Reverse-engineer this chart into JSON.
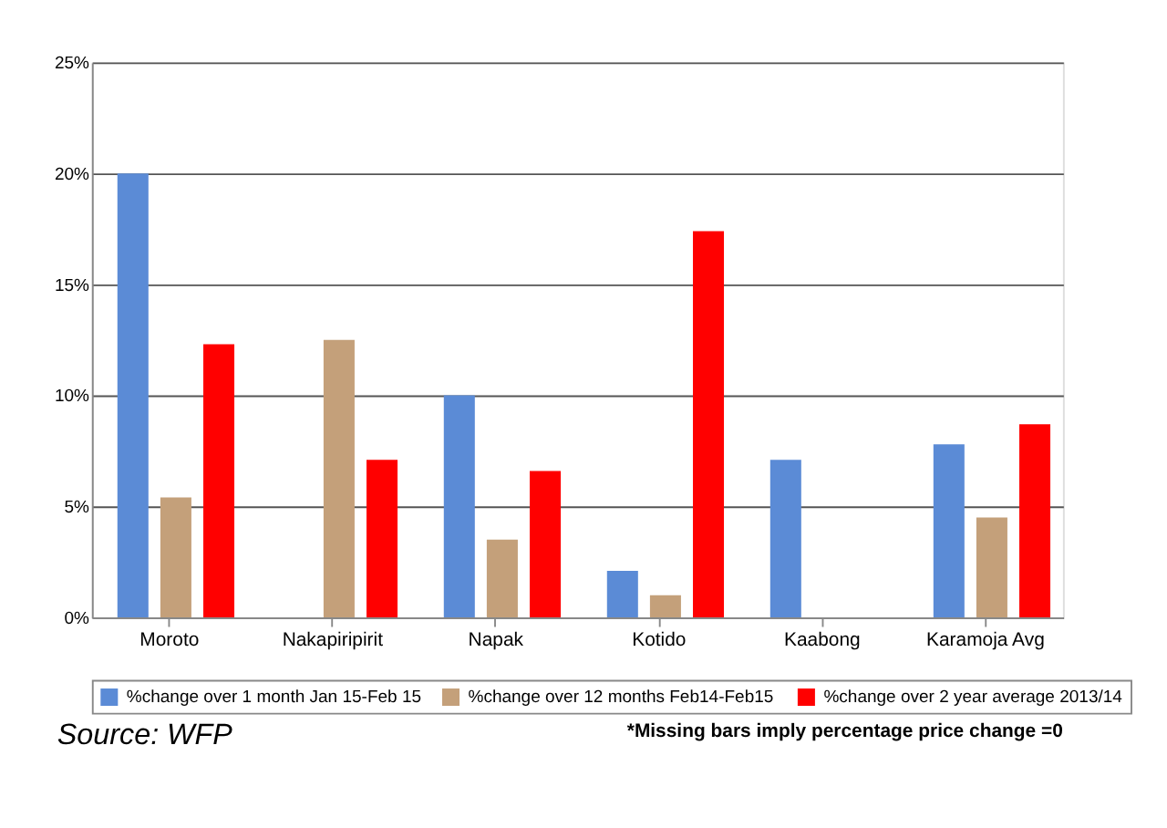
{
  "chart_data": {
    "type": "bar",
    "categories": [
      "Moroto",
      "Nakapiripirit",
      "Napak",
      "Kotido",
      "Kaabong",
      "Karamoja Avg"
    ],
    "series": [
      {
        "name": "%change over 1 month Jan 15-Feb 15",
        "color": "#5b8bd6",
        "values": [
          20.0,
          0,
          10.0,
          2.1,
          7.1,
          7.8
        ]
      },
      {
        "name": "%change over 12 months  Feb14-Feb15",
        "color": "#c4a07a",
        "values": [
          5.4,
          12.5,
          3.5,
          1.0,
          0,
          4.5
        ]
      },
      {
        "name": "%change over 2 year average 2013/14",
        "color": "#ff0000",
        "values": [
          12.3,
          7.1,
          6.6,
          17.4,
          0,
          8.7
        ]
      }
    ],
    "ylim": [
      0,
      25
    ],
    "yticks": [
      {
        "value": 0,
        "label": "0%"
      },
      {
        "value": 5,
        "label": "5%"
      },
      {
        "value": 10,
        "label": "10%"
      },
      {
        "value": 15,
        "label": "15%"
      },
      {
        "value": 20,
        "label": "20%"
      },
      {
        "value": 25,
        "label": "25%"
      }
    ],
    "grid": "y",
    "legend": "bottom",
    "annotations": [
      "Source: WFP",
      "*Missing bars imply percentage price change =0"
    ]
  }
}
